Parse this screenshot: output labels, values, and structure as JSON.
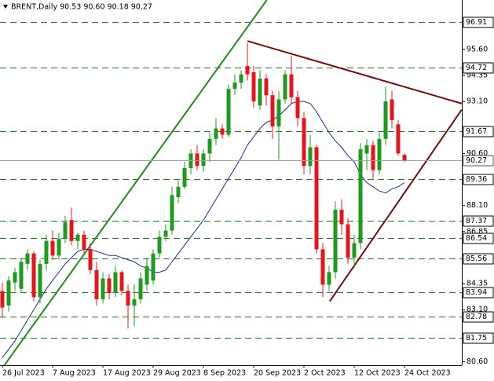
{
  "chart_data": {
    "type": "candlestick",
    "title": "BRENT,Daily  90.53 90.60 90.18 90.27",
    "categories": [
      "26 Jul 2023",
      null,
      null,
      null,
      null,
      null,
      null,
      null,
      "7 Aug 2023",
      null,
      null,
      null,
      null,
      null,
      null,
      null,
      "17 Aug 2023",
      null,
      null,
      null,
      null,
      null,
      null,
      null,
      "29 Aug 2023",
      null,
      null,
      null,
      null,
      null,
      null,
      null,
      "8 Sep 2023",
      null,
      null,
      null,
      null,
      null,
      null,
      null,
      "20 Sep 2023",
      null,
      null,
      null,
      null,
      null,
      null,
      null,
      "2 Oct 2023",
      null,
      null,
      null,
      null,
      null,
      null,
      null,
      "12 Oct 2023",
      null,
      null,
      null,
      null,
      null,
      null,
      null,
      "24 Oct 2023"
    ],
    "open": [
      84.0,
      83.3,
      84.4,
      84.1,
      85.3,
      85.8,
      83.7,
      85.3,
      86.4,
      85.7,
      86.5,
      87.4,
      86.4,
      86.7,
      86.0,
      85.0,
      83.6,
      84.6,
      83.9,
      84.9,
      84.0,
      83.3,
      83.6,
      84.3,
      84.5,
      85.8,
      86.6,
      86.9,
      88.5,
      89.0,
      89.9,
      90.6,
      90.0,
      90.6,
      91.3,
      91.8,
      91.5,
      93.7,
      94.0,
      94.8,
      94.5,
      92.9,
      94.2,
      93.4,
      91.9,
      93.2,
      94.4,
      93.3,
      92.3,
      90.0,
      90.9,
      86.0,
      84.3,
      84.9,
      87.9,
      87.2,
      85.6,
      86.3,
      90.6,
      91.0,
      89.8,
      91.3,
      93.2,
      92.0,
      90.53
    ],
    "high": [
      84.4,
      84.7,
      85.1,
      85.6,
      86.0,
      85.9,
      85.5,
      86.7,
      86.9,
      86.8,
      87.6,
      88.0,
      86.8,
      86.9,
      86.3,
      85.4,
      84.9,
      84.8,
      85.2,
      85.0,
      84.3,
      84.3,
      84.9,
      85.6,
      86.0,
      86.9,
      87.2,
      89.0,
      89.3,
      90.2,
      90.8,
      91.0,
      90.8,
      91.6,
      92.3,
      92.0,
      93.9,
      94.4,
      94.6,
      95.9,
      94.8,
      94.6,
      94.4,
      93.6,
      93.6,
      94.6,
      95.3,
      93.6,
      92.6,
      91.5,
      91.0,
      86.3,
      85.2,
      88.3,
      88.4,
      87.5,
      86.7,
      91.1,
      91.3,
      91.2,
      91.6,
      93.8,
      93.6,
      92.2,
      90.6
    ],
    "low": [
      82.7,
      83.0,
      84.0,
      83.9,
      85.0,
      83.5,
      83.4,
      85.0,
      85.5,
      85.5,
      86.3,
      86.2,
      86.0,
      85.8,
      84.8,
      83.3,
      83.4,
      83.6,
      83.7,
      83.8,
      82.2,
      82.3,
      83.4,
      84.0,
      84.3,
      85.6,
      86.4,
      86.7,
      88.2,
      88.9,
      89.6,
      89.8,
      89.7,
      90.2,
      91.0,
      91.3,
      91.4,
      93.4,
      93.7,
      94.1,
      92.8,
      92.7,
      92.9,
      91.3,
      90.3,
      93.0,
      93.0,
      91.9,
      89.6,
      89.6,
      85.8,
      83.7,
      84.0,
      84.6,
      86.7,
      85.3,
      85.1,
      86.0,
      89.8,
      89.4,
      89.6,
      91.0,
      91.8,
      90.5,
      90.18
    ],
    "close": [
      83.2,
      84.5,
      84.9,
      85.4,
      85.8,
      83.7,
      85.3,
      86.4,
      85.7,
      86.5,
      87.3,
      86.4,
      86.7,
      86.0,
      85.0,
      83.6,
      84.6,
      83.9,
      84.9,
      84.0,
      83.3,
      83.6,
      84.6,
      85.2,
      85.8,
      86.6,
      86.9,
      88.6,
      89.0,
      89.9,
      90.6,
      90.0,
      90.6,
      91.3,
      91.8,
      91.5,
      93.7,
      94.0,
      94.4,
      94.4,
      93.1,
      94.2,
      93.4,
      91.9,
      93.2,
      94.4,
      93.3,
      92.3,
      90.0,
      90.9,
      86.0,
      84.3,
      84.9,
      87.9,
      87.2,
      85.6,
      86.3,
      90.8,
      91.0,
      89.8,
      91.3,
      93.1,
      92.2,
      90.6,
      90.27
    ],
    "up_color": "#1e9a1e",
    "down_color": "#e8141c",
    "ma": {
      "color": "#1c2a8c",
      "values": [
        80.8,
        81.2,
        81.6,
        82.1,
        82.6,
        83.1,
        83.6,
        84.1,
        84.5,
        84.9,
        85.3,
        85.6,
        85.9,
        86.0,
        86.0,
        85.9,
        85.8,
        85.7,
        85.7,
        85.6,
        85.5,
        85.4,
        85.2,
        85.1,
        84.9,
        84.9,
        85.0,
        85.4,
        85.8,
        86.2,
        86.6,
        87.0,
        87.4,
        87.9,
        88.4,
        88.9,
        89.4,
        89.9,
        90.4,
        91.0,
        91.4,
        91.8,
        92.1,
        92.2,
        92.4,
        92.7,
        93.0,
        93.1,
        93.1,
        93.0,
        92.6,
        92.1,
        91.6,
        91.2,
        90.9,
        90.5,
        90.2,
        89.6,
        89.2,
        89.0,
        88.8,
        88.7,
        88.9,
        89.0,
        89.2
      ]
    },
    "trendlines": [
      {
        "color": "#1e8c1e",
        "x": [
          0,
          42.1
        ],
        "values": [
          80.3,
          97.97
        ]
      },
      {
        "color": "#7a0a0a",
        "x": [
          39,
          73.1
        ],
        "values": [
          96.0,
          93.0
        ]
      },
      {
        "color": "#7a0a0a",
        "x": [
          52.1,
          73.1
        ],
        "values": [
          83.5,
          92.7
        ]
      }
    ],
    "levels": {
      "color": "#1e7a1e",
      "values": [
        96.91,
        94.72,
        91.67,
        89.36,
        87.37,
        86.54,
        85.56,
        83.94,
        82.78,
        81.75
      ]
    },
    "ylim": [
      80.43,
      97.97
    ],
    "yticks": [
      {
        "value": 95.6,
        "label": "95.60"
      },
      94.35,
      {
        "value": 93.1,
        "label": "93.10"
      },
      {
        "value": 90.6,
        "label": "90.60"
      },
      {
        "value": 88.1,
        "label": "88.10"
      },
      86.85,
      84.35,
      {
        "value": 83.1,
        "label": "83.10"
      },
      {
        "value": 80.6,
        "label": "80.60"
      }
    ]
  }
}
